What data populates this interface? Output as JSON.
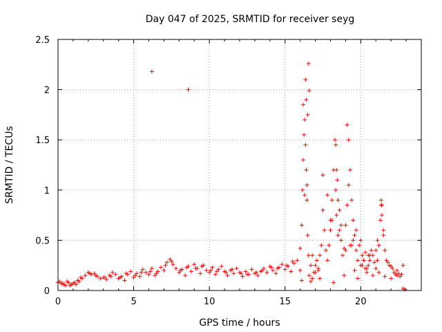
{
  "chart_data": {
    "type": "scatter",
    "title": "Day 047 of 2025, SRMTID for receiver seyg",
    "xlabel": "GPS time / hours",
    "ylabel": "SRMTID / TECUs",
    "xlim": [
      0,
      24
    ],
    "ylim": [
      0,
      2.5
    ],
    "x_ticks": [
      0,
      5,
      10,
      15,
      20
    ],
    "x_tick_labels": [
      "0",
      "5",
      "10",
      "15",
      "20"
    ],
    "y_ticks": [
      0,
      0.5,
      1,
      1.5,
      2,
      2.5
    ],
    "y_tick_labels": [
      "0",
      "0.5",
      "1",
      "1.5",
      "2",
      "2.5"
    ],
    "grid": true,
    "marker": "+",
    "color": "#ff0000",
    "series": [
      {
        "name": "SRMTID",
        "x": [
          0.0,
          0.2,
          0.4,
          0.6,
          0.8,
          1.0,
          1.2,
          1.4,
          1.6,
          1.8,
          2.0,
          2.2,
          2.4,
          2.6,
          2.8,
          3.0,
          3.2,
          3.4,
          3.6,
          3.8,
          4.0,
          4.2,
          4.4,
          4.6,
          4.8,
          5.0,
          5.2,
          5.4,
          5.6,
          5.8,
          6.0,
          6.2,
          6.4,
          6.6,
          6.8,
          7.0,
          7.2,
          7.4,
          7.6,
          7.8,
          8.0,
          8.2,
          8.4,
          8.6,
          8.8,
          9.0,
          9.2,
          9.4,
          9.6,
          9.8,
          10.0,
          10.2,
          10.4,
          10.6,
          10.8,
          11.0,
          11.2,
          11.4,
          11.6,
          11.8,
          12.0,
          12.2,
          12.4,
          12.6,
          12.8,
          13.0,
          13.2,
          13.4,
          13.6,
          13.8,
          14.0,
          14.2,
          14.4,
          14.6,
          14.8,
          15.0,
          15.2,
          15.4,
          15.6,
          15.8,
          16.0,
          16.1,
          16.15,
          16.2,
          16.25,
          16.3,
          16.35,
          16.4,
          16.45,
          16.5,
          16.55,
          16.6,
          16.7,
          16.8,
          16.9,
          17.0,
          17.1,
          17.2,
          17.3,
          17.4,
          17.5,
          17.6,
          17.7,
          17.8,
          17.9,
          18.0,
          18.1,
          18.2,
          18.3,
          18.35,
          18.4,
          18.45,
          18.5,
          18.6,
          18.7,
          18.8,
          18.9,
          19.0,
          19.1,
          19.2,
          19.3,
          19.4,
          19.5,
          19.6,
          19.7,
          19.8,
          19.9,
          20.0,
          20.1,
          20.2,
          20.3,
          20.4,
          20.5,
          20.6,
          20.7,
          20.8,
          20.9,
          21.0,
          21.1,
          21.2,
          21.3,
          21.35,
          21.4,
          21.5,
          21.6,
          21.7,
          21.8,
          21.9,
          22.0,
          22.1,
          22.2,
          22.3,
          22.4,
          22.5,
          22.6,
          22.7,
          22.8,
          22.9,
          6.2,
          8.6,
          16.2,
          16.35,
          16.4,
          16.5,
          16.55,
          16.6,
          18.35,
          18.4,
          19.1,
          19.2,
          16.3,
          16.45,
          21.35,
          17.5,
          17.8,
          18.6,
          18.7,
          19.4,
          19.5,
          20.3,
          20.5,
          22.8,
          16.0,
          16.1,
          17.2,
          17.3,
          18.2,
          18.9,
          19.6,
          19.8,
          20.1,
          20.8,
          21.2,
          21.6,
          22.0,
          22.4,
          16.7,
          16.8,
          17.0,
          18.0,
          18.1,
          18.5,
          19.0,
          19.3,
          19.7,
          20.0,
          20.2,
          20.4,
          20.6,
          21.0,
          21.1,
          21.4,
          21.5,
          0.1,
          0.3,
          0.5,
          0.7,
          0.9,
          1.1,
          1.3,
          1.5,
          2.1,
          2.5,
          3.1,
          3.5,
          4.1,
          4.5,
          5.1,
          5.5,
          6.1,
          6.5,
          7.1,
          7.5,
          8.1,
          8.5,
          9.1,
          9.5,
          10.1,
          10.5,
          11.1,
          11.5,
          12.1,
          12.5,
          13.1,
          13.5,
          14.1,
          14.5,
          15.1,
          15.5
        ],
        "y": [
          0.08,
          0.07,
          0.06,
          0.09,
          0.05,
          0.07,
          0.06,
          0.09,
          0.12,
          0.15,
          0.18,
          0.16,
          0.17,
          0.14,
          0.12,
          0.13,
          0.11,
          0.15,
          0.18,
          0.16,
          0.12,
          0.14,
          0.1,
          0.16,
          0.19,
          0.13,
          0.17,
          0.14,
          0.21,
          0.18,
          0.16,
          0.22,
          0.15,
          0.19,
          0.23,
          0.2,
          0.28,
          0.31,
          0.26,
          0.22,
          0.18,
          0.21,
          0.15,
          0.24,
          0.19,
          0.26,
          0.22,
          0.17,
          0.25,
          0.2,
          0.18,
          0.23,
          0.16,
          0.21,
          0.24,
          0.19,
          0.15,
          0.2,
          0.17,
          0.22,
          0.18,
          0.14,
          0.19,
          0.16,
          0.21,
          0.17,
          0.15,
          0.19,
          0.22,
          0.18,
          0.24,
          0.2,
          0.17,
          0.23,
          0.26,
          0.21,
          0.24,
          0.19,
          0.27,
          0.3,
          0.42,
          0.65,
          1.0,
          1.3,
          1.55,
          1.7,
          1.45,
          1.2,
          0.9,
          0.55,
          0.35,
          0.15,
          0.09,
          0.12,
          0.18,
          0.25,
          0.3,
          0.22,
          0.35,
          0.45,
          0.8,
          0.6,
          0.4,
          0.3,
          0.45,
          0.7,
          0.9,
          1.2,
          1.5,
          1.0,
          0.75,
          1.1,
          0.9,
          0.6,
          0.5,
          0.35,
          0.42,
          0.65,
          0.85,
          1.05,
          1.2,
          0.9,
          0.7,
          0.55,
          0.4,
          0.3,
          0.45,
          0.25,
          0.35,
          0.3,
          0.22,
          0.18,
          0.25,
          0.3,
          0.4,
          0.35,
          0.28,
          0.22,
          0.3,
          0.45,
          0.7,
          0.9,
          0.75,
          0.55,
          0.4,
          0.3,
          0.28,
          0.25,
          0.24,
          0.22,
          0.18,
          0.16,
          0.15,
          0.17,
          0.14,
          0.16,
          0.02,
          0.01,
          2.18,
          2.0,
          1.85,
          2.1,
          1.9,
          1.75,
          2.26,
          1.99,
          1.45,
          1.2,
          1.65,
          1.5,
          0.95,
          1.05,
          0.85,
          1.15,
          0.95,
          0.8,
          0.65,
          0.45,
          0.5,
          0.38,
          0.35,
          0.25,
          0.2,
          0.1,
          0.2,
          0.12,
          0.08,
          0.15,
          0.2,
          0.12,
          0.25,
          0.15,
          0.18,
          0.14,
          0.12,
          0.2,
          0.25,
          0.35,
          0.18,
          0.6,
          0.7,
          0.55,
          0.4,
          0.45,
          0.6,
          0.5,
          0.3,
          0.22,
          0.35,
          0.4,
          0.5,
          0.85,
          0.6,
          0.09,
          0.07,
          0.05,
          0.08,
          0.06,
          0.08,
          0.1,
          0.13,
          0.17,
          0.15,
          0.13,
          0.14,
          0.13,
          0.17,
          0.15,
          0.18,
          0.19,
          0.17,
          0.25,
          0.29,
          0.2,
          0.23,
          0.22,
          0.24,
          0.2,
          0.19,
          0.18,
          0.21,
          0.17,
          0.16,
          0.18,
          0.2,
          0.23,
          0.22,
          0.25,
          0.29
        ]
      }
    ]
  }
}
